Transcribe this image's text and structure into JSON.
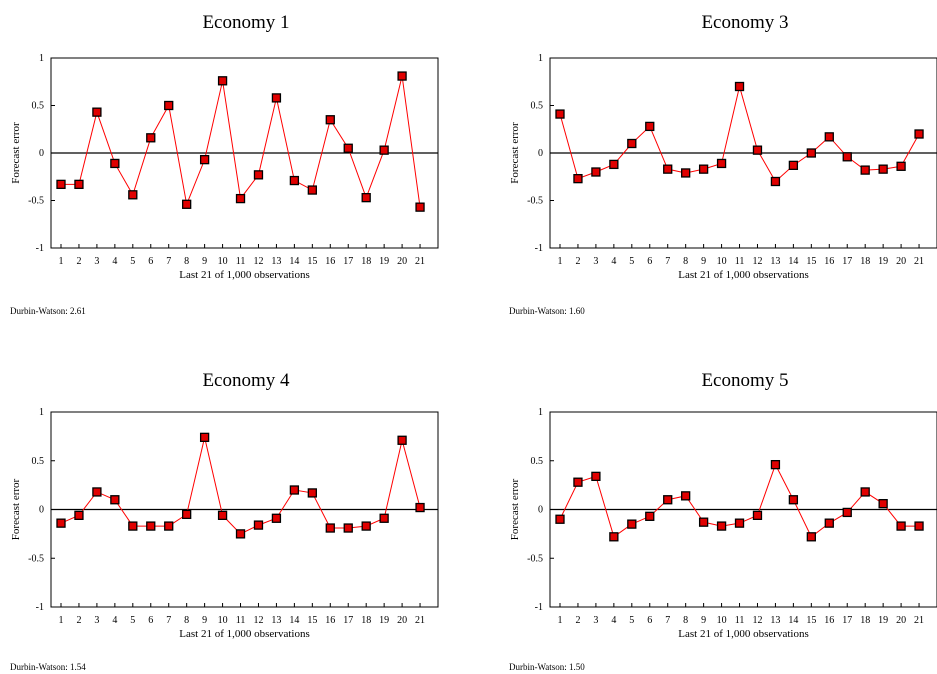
{
  "chart_data": [
    {
      "type": "line",
      "title": "Economy 1",
      "xlabel": "Last 21 of 1,000 observations",
      "ylabel": "Forecast error",
      "ylim": [
        -1,
        1
      ],
      "yticks": [
        "1",
        "0.5",
        "0",
        "-0.5",
        "-1"
      ],
      "categories": [
        "1",
        "2",
        "3",
        "4",
        "5",
        "6",
        "7",
        "8",
        "9",
        "10",
        "11",
        "12",
        "13",
        "14",
        "15",
        "16",
        "17",
        "18",
        "19",
        "20",
        "21"
      ],
      "values": [
        -0.33,
        -0.33,
        0.43,
        -0.11,
        -0.44,
        0.16,
        0.5,
        -0.54,
        -0.07,
        0.76,
        -0.48,
        -0.23,
        0.58,
        -0.29,
        -0.39,
        0.35,
        0.05,
        -0.47,
        0.03,
        0.81,
        -0.57
      ],
      "footnote": "Durbin-Watson: 2.61",
      "line_color": "#ff0000",
      "marker_color": "#e00000"
    },
    {
      "type": "line",
      "title": "Economy 3",
      "xlabel": "Last 21 of 1,000 observations",
      "ylabel": "Forecast error",
      "ylim": [
        -1,
        1
      ],
      "yticks": [
        "1",
        "0.5",
        "0",
        "-0.5",
        "-1"
      ],
      "categories": [
        "1",
        "2",
        "3",
        "4",
        "5",
        "6",
        "7",
        "8",
        "9",
        "10",
        "11",
        "12",
        "13",
        "14",
        "15",
        "16",
        "17",
        "18",
        "19",
        "20",
        "21"
      ],
      "values": [
        0.41,
        -0.27,
        -0.2,
        -0.12,
        0.1,
        0.28,
        -0.17,
        -0.21,
        -0.17,
        -0.11,
        0.7,
        0.03,
        -0.3,
        -0.13,
        0.0,
        0.17,
        -0.04,
        -0.18,
        -0.17,
        -0.14,
        0.2
      ],
      "footnote": "Durbin-Watson: 1.60",
      "line_color": "#ff0000",
      "marker_color": "#e00000"
    },
    {
      "type": "line",
      "title": "Economy 4",
      "xlabel": "Last 21 of 1,000 observations",
      "ylabel": "Forecast error",
      "ylim": [
        -1,
        1
      ],
      "yticks": [
        "1",
        "0.5",
        "0",
        "-0.5",
        "-1"
      ],
      "categories": [
        "1",
        "2",
        "3",
        "4",
        "5",
        "6",
        "7",
        "8",
        "9",
        "10",
        "11",
        "12",
        "13",
        "14",
        "15",
        "16",
        "17",
        "18",
        "19",
        "20",
        "21"
      ],
      "values": [
        -0.14,
        -0.06,
        0.18,
        0.1,
        -0.17,
        -0.17,
        -0.17,
        -0.05,
        0.74,
        -0.06,
        -0.25,
        -0.16,
        -0.09,
        0.2,
        0.17,
        -0.19,
        -0.19,
        -0.17,
        -0.09,
        0.71,
        0.02
      ],
      "footnote": "Durbin-Watson: 1.54",
      "line_color": "#ff0000",
      "marker_color": "#e00000"
    },
    {
      "type": "line",
      "title": "Economy 5",
      "xlabel": "Last 21 of 1,000 observations",
      "ylabel": "Forecast error",
      "ylim": [
        -1,
        1
      ],
      "yticks": [
        "1",
        "0.5",
        "0",
        "-0.5",
        "-1"
      ],
      "categories": [
        "1",
        "2",
        "3",
        "4",
        "5",
        "6",
        "7",
        "8",
        "9",
        "10",
        "11",
        "12",
        "13",
        "14",
        "15",
        "16",
        "17",
        "18",
        "19",
        "20",
        "21"
      ],
      "values": [
        -0.1,
        0.28,
        0.34,
        -0.28,
        -0.15,
        -0.07,
        0.1,
        0.14,
        -0.13,
        -0.17,
        -0.14,
        -0.06,
        0.46,
        0.1,
        -0.28,
        -0.14,
        -0.03,
        0.18,
        0.06,
        -0.17,
        -0.17
      ],
      "footnote": "Durbin-Watson: 1.50",
      "line_color": "#ff0000",
      "marker_color": "#e00000"
    }
  ]
}
